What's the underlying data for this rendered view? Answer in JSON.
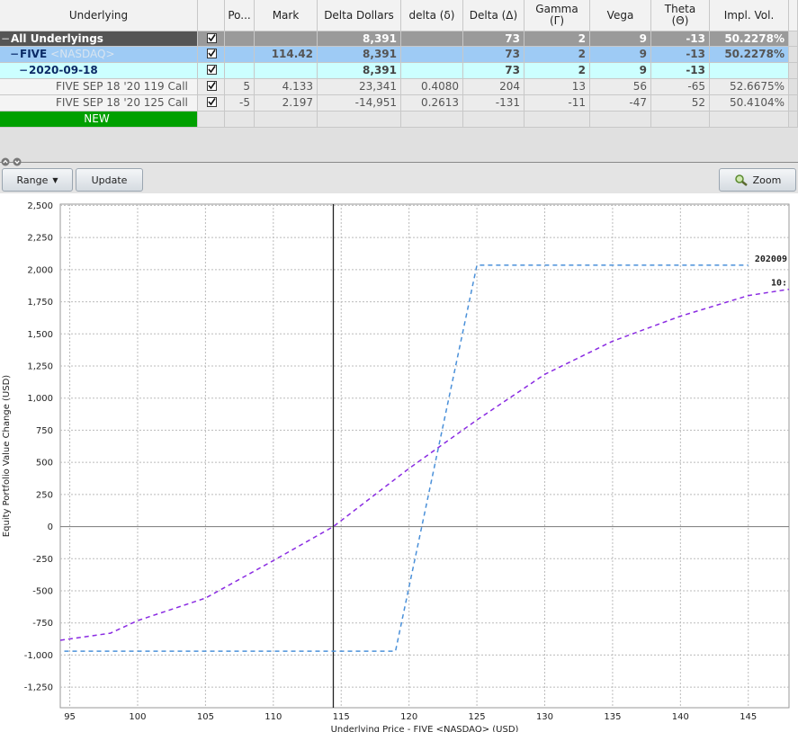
{
  "table": {
    "columns": [
      "Underlying",
      "Po...",
      "Mark",
      "Delta Dollars",
      "delta (δ)",
      "Delta (Δ)",
      "Gamma (Γ)",
      "Vega",
      "Theta (Θ)",
      "Impl. Vol."
    ],
    "rows": [
      {
        "label": "All Underlyings",
        "cells": [
          null,
          null,
          "8,391",
          null,
          "73",
          "2",
          "9",
          "-13",
          "50.2278%"
        ]
      },
      {
        "label": "FIVE",
        "exchange": "<NASDAQ>",
        "cells": [
          null,
          "114.42",
          "8,391",
          null,
          "73",
          "2",
          "9",
          "-13",
          "50.2278%"
        ]
      },
      {
        "label": "2020-09-18",
        "cells": [
          null,
          null,
          "8,391",
          null,
          "73",
          "2",
          "9",
          "-13",
          null
        ]
      },
      {
        "label": "FIVE SEP 18 '20 119 Call",
        "cells": [
          "5",
          "4.133",
          "23,341",
          "0.4080",
          "204",
          "13",
          "56",
          "-65",
          "52.6675%"
        ]
      },
      {
        "label": "FIVE SEP 18 '20 125 Call",
        "cells": [
          "-5",
          "2.197",
          "-14,951",
          "0.2613",
          "-131",
          "-11",
          "-47",
          "52",
          "50.4104%"
        ]
      },
      {
        "label": "NEW"
      }
    ]
  },
  "toolbar": {
    "range": "Range",
    "update": "Update",
    "zoom": "Zoom"
  },
  "chart_data": {
    "type": "line",
    "y_label": "Equity Portfolio Value Change (USD)",
    "x_label": "Underlying Price - FIVE <NASDAQ> (USD)",
    "xlim": [
      94.3,
      148
    ],
    "ylim": [
      -1410,
      2510
    ],
    "xticks": [
      95,
      100,
      105,
      110,
      115,
      120,
      125,
      130,
      135,
      140,
      145
    ],
    "yticks": [
      {
        "value": 2500,
        "label": "2,500"
      },
      {
        "value": 2250,
        "label": "2,250"
      },
      {
        "value": 2000,
        "label": "2,000"
      },
      {
        "value": 1750,
        "label": "1,750"
      },
      {
        "value": 1500,
        "label": "1,500"
      },
      {
        "value": 1250,
        "label": "1,250"
      },
      {
        "value": 1000,
        "label": "1,000"
      },
      750,
      500,
      250,
      0,
      -250,
      -500,
      -750,
      {
        "value": -1000,
        "label": "-1,000"
      },
      {
        "value": -1250,
        "label": "-1,250"
      }
    ],
    "grid": true,
    "marker_x": 114.42,
    "series": [
      {
        "name": "202009",
        "color": "#4a90d9",
        "x": [
          94.6,
          119,
          125,
          145
        ],
        "values": [
          -970,
          -970,
          2035,
          2035
        ]
      },
      {
        "name": "10:",
        "color": "#8a2be2",
        "x": [
          94.3,
          98,
          100,
          105,
          110,
          114.42,
          120,
          125,
          130,
          135,
          140,
          145,
          148
        ],
        "values": [
          -885,
          -830,
          -732,
          -557,
          -265,
          0,
          453,
          830,
          1185,
          1443,
          1638,
          1798,
          1847
        ]
      }
    ]
  }
}
